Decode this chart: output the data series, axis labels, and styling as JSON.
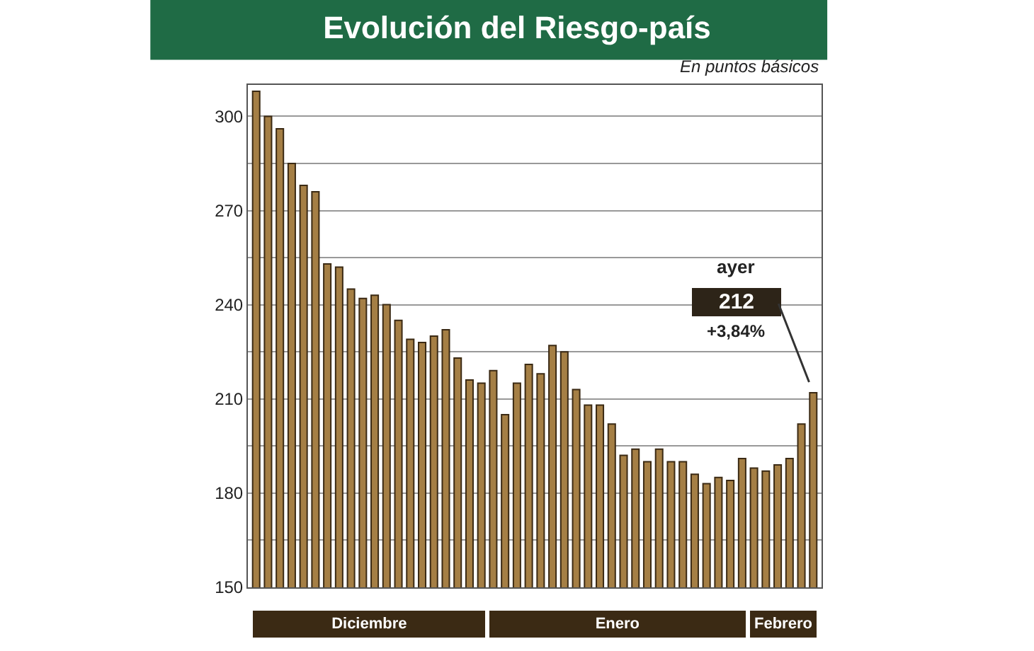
{
  "chart_data": {
    "type": "bar",
    "title": "Evolución del Riesgo-país",
    "subtitle": "En puntos básicos",
    "categories": [
      null,
      null,
      null,
      null,
      null,
      null,
      null,
      null,
      null,
      null,
      null,
      null,
      null,
      null,
      null,
      null,
      null,
      null,
      null,
      null,
      null,
      null,
      null,
      null,
      null,
      null,
      null,
      null,
      null,
      null,
      null,
      null,
      null,
      null,
      null,
      null,
      null,
      null,
      null,
      null,
      null,
      null,
      null,
      null,
      null,
      null,
      null,
      null
    ],
    "series": [
      {
        "color": "#a57f45",
        "values": [
          308,
          300,
          296,
          285,
          278,
          276,
          253,
          252,
          245,
          242,
          243,
          240,
          235,
          229,
          228,
          230,
          232,
          223,
          216,
          215,
          219,
          205,
          215,
          221,
          218,
          227,
          225,
          213,
          208,
          208,
          202,
          192,
          194,
          190,
          194,
          190,
          190,
          186,
          183,
          185,
          184,
          191,
          188,
          187,
          189,
          191,
          202,
          212
        ]
      }
    ],
    "ylim": [
      150,
      310
    ],
    "yticks": [
      150,
      {
        "value": 165,
        "label": null
      },
      180,
      {
        "value": 195,
        "label": null
      },
      210,
      {
        "value": 225,
        "label": null
      },
      240,
      {
        "value": 255,
        "label": null
      },
      270,
      {
        "value": 285,
        "label": null
      },
      300
    ],
    "grid": "y",
    "annotations": [
      "Diciembre",
      "Enero",
      "Febrero",
      "ayer",
      "212",
      "+3,84%"
    ]
  }
}
